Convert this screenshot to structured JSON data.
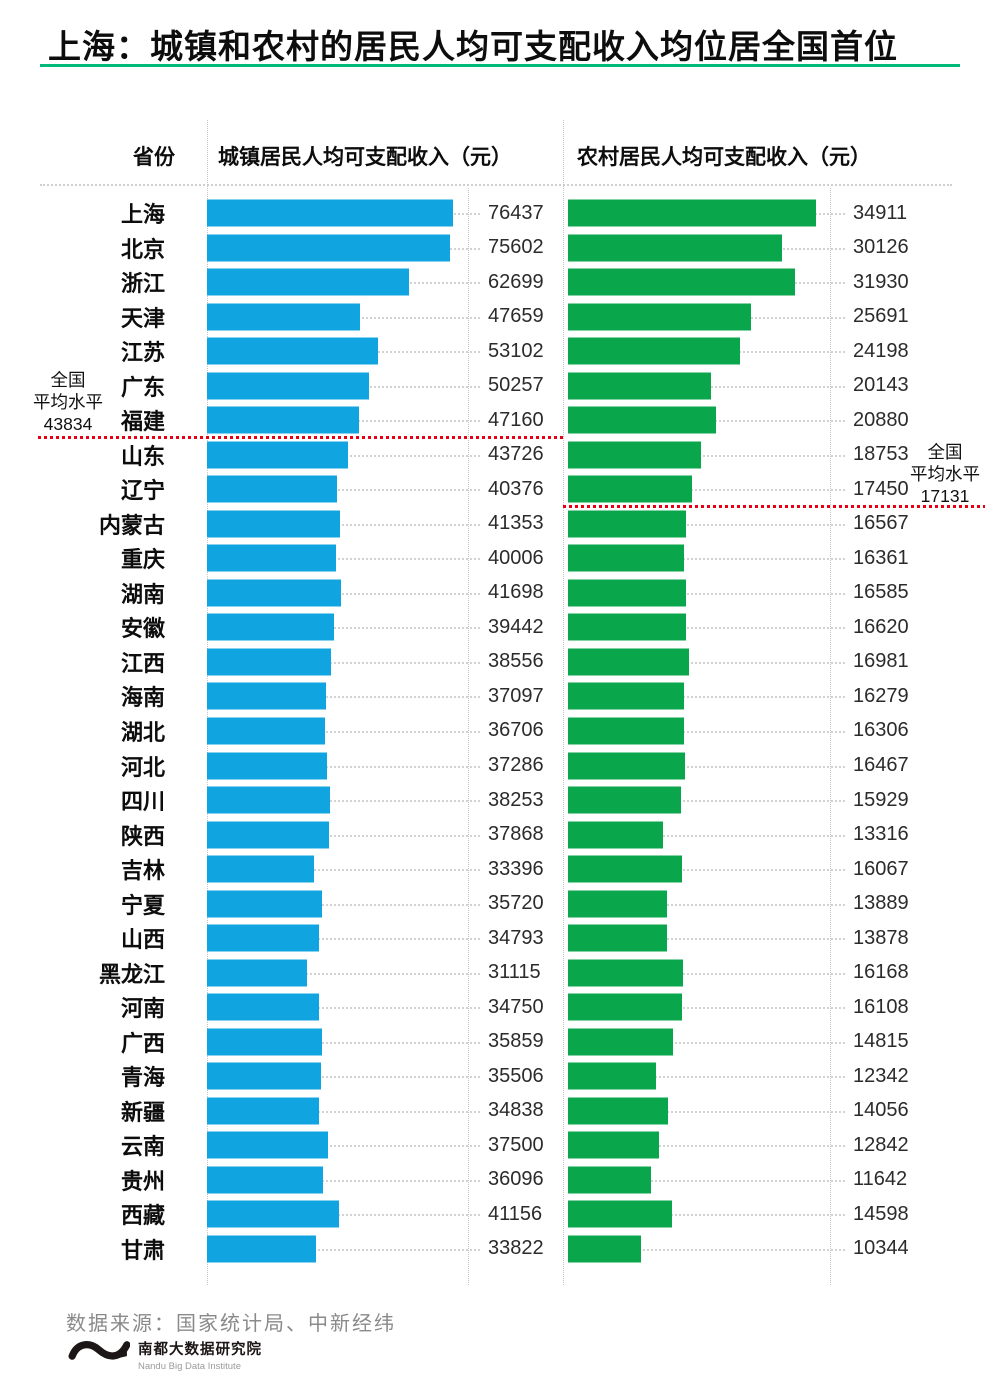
{
  "page": {
    "logo_cn": "南都大数据研究院",
    "logo_en": "Nandu Big Data Institute"
  },
  "table_headers": {
    "province": "省份",
    "urban": "城镇居民人均可支配收入（元）",
    "rural": "农村居民人均可支配收入（元）"
  },
  "annotations": {
    "urban_avg": {
      "line1": "全国",
      "line2": "平均水平",
      "value": "43834"
    },
    "rural_avg": {
      "line1": "全国",
      "line2": "平均水平",
      "value": "17131"
    }
  },
  "colors": {
    "urban_bar": "#10A5E0",
    "rural_bar": "#0AA64C",
    "title_rule": "#00B877",
    "avg_line": "#E60012",
    "grid_dotted": "#C4C4C4"
  },
  "chart_data": {
    "type": "bar",
    "orientation": "horizontal",
    "title": "上海：城镇和农村的居民人均可支配收入均位居全国首位",
    "source": "数据来源：国家统计局、中新经纬",
    "legend_position": "none",
    "grid": "dotted-leader-lines",
    "categories": [
      "上海",
      "北京",
      "浙江",
      "天津",
      "江苏",
      "广东",
      "福建",
      "山东",
      "辽宁",
      "内蒙古",
      "重庆",
      "湖南",
      "安徽",
      "江西",
      "海南",
      "湖北",
      "河北",
      "四川",
      "陕西",
      "吉林",
      "宁夏",
      "山西",
      "黑龙江",
      "河南",
      "广西",
      "青海",
      "新疆",
      "云南",
      "贵州",
      "西藏",
      "甘肃"
    ],
    "series": [
      {
        "name": "城镇居民人均可支配收入（元）",
        "color": "#10A5E0",
        "axis_range": [
          0,
          76437
        ],
        "national_average": 43834,
        "values": [
          76437,
          75602,
          62699,
          47659,
          53102,
          50257,
          47160,
          43726,
          40376,
          41353,
          40006,
          41698,
          39442,
          38556,
          37097,
          36706,
          37286,
          38253,
          37868,
          33396,
          35720,
          34793,
          31115,
          34750,
          35859,
          35506,
          34838,
          37500,
          36096,
          41156,
          33822
        ]
      },
      {
        "name": "农村居民人均可支配收入（元）",
        "color": "#0AA64C",
        "axis_range": [
          0,
          34911
        ],
        "national_average": 17131,
        "values": [
          34911,
          30126,
          31930,
          25691,
          24198,
          20143,
          20880,
          18753,
          17450,
          16567,
          16361,
          16585,
          16620,
          16981,
          16279,
          16306,
          16467,
          15929,
          13316,
          16067,
          13889,
          13878,
          16168,
          16108,
          14815,
          12342,
          14056,
          12842,
          11642,
          14598,
          10344
        ]
      }
    ],
    "reference_lines": [
      {
        "series": "城镇居民人均可支配收入（元）",
        "label": "全国平均水平",
        "value": 43834
      },
      {
        "series": "农村居民人均可支配收入（元）",
        "label": "全国平均水平",
        "value": 17131
      }
    ]
  }
}
